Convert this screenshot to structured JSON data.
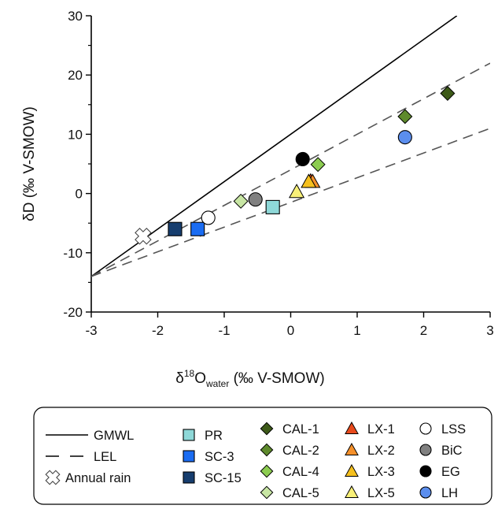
{
  "chart_data": {
    "type": "scatter",
    "xlabel_main": "δ",
    "xlabel_super": "18",
    "xlabel_o": "O",
    "xlabel_sub": "water",
    "xlabel_tail": " (‰ V-SMOW)",
    "ylabel": "δD (‰ V-SMOW)",
    "xlim": [
      -3,
      3
    ],
    "ylim": [
      -20,
      30
    ],
    "x_ticks": [
      "-3",
      "-2",
      "-1",
      "0",
      "1",
      "2",
      "3"
    ],
    "y_ticks": [
      "-20",
      "-10",
      "0",
      "10",
      "20",
      "30"
    ],
    "grid": false,
    "legend_position": "bottom",
    "lines": [
      {
        "name": "GMWL",
        "style": "solid",
        "x": [
          -3,
          2.5
        ],
        "y": [
          -14,
          30
        ]
      },
      {
        "name": "LEL",
        "style": "dashed",
        "x": [
          -3,
          3
        ],
        "y": [
          -14,
          22
        ]
      },
      {
        "name": "",
        "style": "dashed",
        "x": [
          -3,
          3
        ],
        "y": [
          -14,
          11
        ]
      }
    ],
    "series": [
      {
        "name": "Annual rain",
        "marker": "x-cross",
        "color": "#ffffff",
        "points": [
          [
            -2.22,
            -7.2
          ]
        ]
      },
      {
        "name": "PR",
        "marker": "square",
        "color": "#8ed8d8",
        "points": [
          [
            -0.27,
            -2.3
          ]
        ]
      },
      {
        "name": "SC-3",
        "marker": "square",
        "color": "#1a6cf2",
        "points": [
          [
            -1.4,
            -6.0
          ]
        ]
      },
      {
        "name": "SC-15",
        "marker": "square",
        "color": "#163d6e",
        "points": [
          [
            -1.74,
            -6.0
          ]
        ]
      },
      {
        "name": "CAL-1",
        "marker": "diamond",
        "color": "#3d5a18",
        "points": [
          [
            2.36,
            16.9
          ]
        ]
      },
      {
        "name": "CAL-2",
        "marker": "diamond",
        "color": "#5e8a2c",
        "points": [
          [
            1.72,
            13.0
          ]
        ]
      },
      {
        "name": "CAL-4",
        "marker": "diamond",
        "color": "#8ccc50",
        "points": [
          [
            0.41,
            4.9
          ]
        ]
      },
      {
        "name": "CAL-5",
        "marker": "diamond",
        "color": "#c8e6a4",
        "points": [
          [
            -0.75,
            -1.3
          ]
        ]
      },
      {
        "name": "LX-1",
        "marker": "triangle",
        "color": "#e84a1c",
        "points": [
          [
            0.3,
            2.1
          ]
        ]
      },
      {
        "name": "LX-2",
        "marker": "triangle",
        "color": "#f5902a",
        "points": [
          [
            0.33,
            2.0
          ]
        ]
      },
      {
        "name": "LX-3",
        "marker": "triangle",
        "color": "#f5c01e",
        "points": [
          [
            0.27,
            2.0
          ]
        ]
      },
      {
        "name": "LX-5",
        "marker": "triangle",
        "color": "#f8f078",
        "points": [
          [
            0.09,
            0.3
          ]
        ]
      },
      {
        "name": "LSS",
        "marker": "circle",
        "color": "#ffffff",
        "points": [
          [
            -1.24,
            -4.1
          ]
        ]
      },
      {
        "name": "BiC",
        "marker": "circle",
        "color": "#808080",
        "points": [
          [
            -0.53,
            -1.0
          ]
        ]
      },
      {
        "name": "EG",
        "marker": "circle",
        "color": "#000000",
        "points": [
          [
            0.18,
            5.8
          ]
        ]
      },
      {
        "name": "LH",
        "marker": "circle",
        "color": "#5b8eee",
        "points": [
          [
            1.72,
            9.5
          ]
        ]
      }
    ]
  }
}
